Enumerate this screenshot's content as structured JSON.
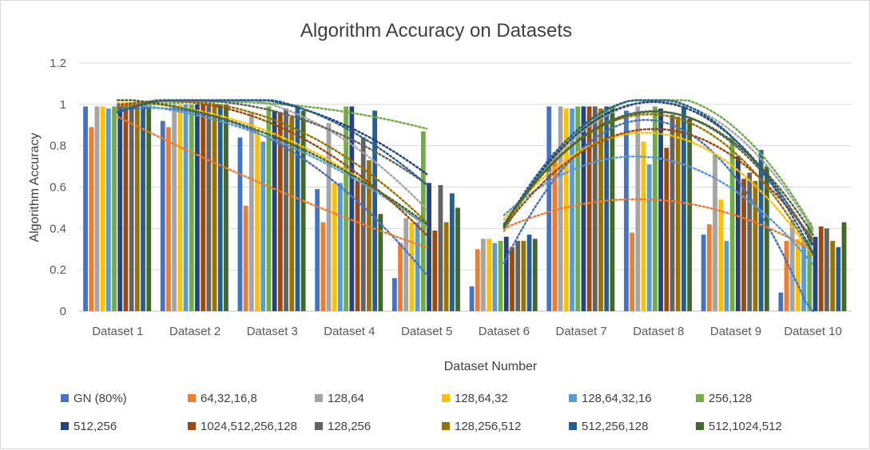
{
  "chart_data": {
    "type": "bar",
    "title": "Algorithm Accuracy on Datasets",
    "xlabel": "Dataset Number",
    "ylabel": "Algorithm Accuracy",
    "ylim": [
      0,
      1.2
    ],
    "yticks": [
      "0",
      "0.2",
      "0.4",
      "0.6",
      "0.8",
      "1",
      "1.2"
    ],
    "grid": true,
    "legend_position": "bottom",
    "trendlines": "polynomial (dotted), one per series",
    "categories": [
      "Dataset 1",
      "Dataset 2",
      "Dataset 3",
      "Dataset 4",
      "Dataset 5",
      "Dataset 6",
      "Dataset 7",
      "Dataset 8",
      "Dataset 9",
      "Dataset 10"
    ],
    "series": [
      {
        "name": "GN (80%)",
        "color": "#4472C4",
        "values": [
          0.99,
          0.92,
          0.84,
          0.59,
          0.16,
          0.12,
          0.99,
          0.97,
          0.37,
          0.09
        ]
      },
      {
        "name": "64,32,16,8",
        "color": "#ED7D31",
        "values": [
          0.89,
          0.89,
          0.51,
          0.43,
          0.33,
          0.3,
          0.77,
          0.38,
          0.42,
          0.34
        ]
      },
      {
        "name": "128,64",
        "color": "#A5A5A5",
        "values": [
          0.99,
          1.0,
          0.96,
          0.91,
          0.45,
          0.35,
          0.99,
          0.99,
          0.76,
          0.44
        ]
      },
      {
        "name": "128,64,32",
        "color": "#FFC000",
        "values": [
          0.99,
          1.0,
          0.88,
          0.62,
          0.43,
          0.35,
          0.98,
          0.82,
          0.54,
          0.35
        ]
      },
      {
        "name": "128,64,32,16",
        "color": "#5B9BD5",
        "values": [
          0.98,
          1.0,
          0.82,
          0.62,
          0.43,
          0.33,
          0.98,
          0.71,
          0.34,
          0.35
        ]
      },
      {
        "name": "256,128",
        "color": "#70AD47",
        "values": [
          0.99,
          1.0,
          0.99,
          0.99,
          0.87,
          0.34,
          0.99,
          0.99,
          0.84,
          0.43
        ]
      },
      {
        "name": "512,256",
        "color": "#264478",
        "values": [
          0.99,
          1.0,
          0.97,
          0.99,
          0.62,
          0.36,
          0.99,
          0.98,
          0.75,
          0.36
        ]
      },
      {
        "name": "1024,512,256,128",
        "color": "#9E480E",
        "values": [
          0.99,
          1.0,
          0.96,
          0.63,
          0.39,
          0.31,
          0.99,
          0.79,
          0.64,
          0.41
        ]
      },
      {
        "name": "128,256",
        "color": "#636363",
        "values": [
          0.99,
          1.0,
          0.98,
          0.84,
          0.61,
          0.34,
          0.99,
          0.95,
          0.67,
          0.4
        ]
      },
      {
        "name": "128,256,512",
        "color": "#997300",
        "values": [
          0.99,
          1.0,
          0.94,
          0.73,
          0.43,
          0.34,
          0.98,
          0.94,
          0.63,
          0.34
        ]
      },
      {
        "name": "512,256,128",
        "color": "#255E91",
        "values": [
          0.99,
          1.0,
          0.99,
          0.97,
          0.57,
          0.37,
          0.99,
          0.99,
          0.78,
          0.31
        ]
      },
      {
        "name": "512,1024,512",
        "color": "#43682B",
        "values": [
          0.99,
          1.0,
          0.97,
          0.47,
          0.5,
          0.35,
          0.99,
          0.93,
          0.7,
          0.43
        ]
      }
    ]
  }
}
